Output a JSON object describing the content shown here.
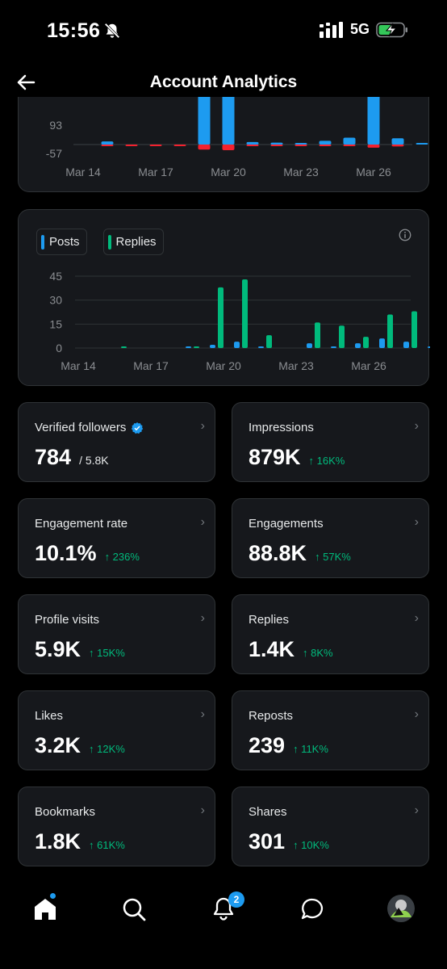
{
  "status": {
    "time": "15:56",
    "network": "5G"
  },
  "header": {
    "title": "Account Analytics"
  },
  "chart_data": [
    {
      "type": "bar",
      "categories": [
        "Mar 13",
        "Mar 14",
        "Mar 15",
        "Mar 16",
        "Mar 17",
        "Mar 18",
        "Mar 19",
        "Mar 20",
        "Mar 21",
        "Mar 22",
        "Mar 23",
        "Mar 24",
        "Mar 25",
        "Mar 26",
        "Mar 27"
      ],
      "x_tick_labels": [
        "Mar 14",
        "Mar 17",
        "Mar 20",
        "Mar 23",
        "Mar 26"
      ],
      "y_tick_labels": [
        "93",
        "-57"
      ],
      "series": [
        {
          "color": "#1d9bf0",
          "values": [
            0,
            25,
            0,
            0,
            0,
            600,
            600,
            20,
            15,
            10,
            30,
            55,
            600,
            50,
            10
          ]
        },
        {
          "color": "#f4212e",
          "values": [
            0,
            -3,
            -3,
            -3,
            -3,
            -40,
            -45,
            -5,
            -10,
            -8,
            -6,
            -3,
            -25,
            -15,
            0
          ]
        }
      ]
    },
    {
      "type": "bar",
      "categories": [
        "Mar 13",
        "Mar 14",
        "Mar 15",
        "Mar 16",
        "Mar 17",
        "Mar 18",
        "Mar 19",
        "Mar 20",
        "Mar 21",
        "Mar 22",
        "Mar 23",
        "Mar 24",
        "Mar 25",
        "Mar 26",
        "Mar 27"
      ],
      "x_tick_labels": [
        "Mar 14",
        "Mar 17",
        "Mar 20",
        "Mar 23",
        "Mar 26"
      ],
      "y_tick_labels": [
        "45",
        "30",
        "15",
        "0"
      ],
      "ylim": [
        0,
        45
      ],
      "legend": [
        "Posts",
        "Replies"
      ],
      "series": [
        {
          "name": "Posts",
          "color": "#1d9bf0",
          "values": [
            0,
            0,
            0,
            0,
            1,
            2,
            4,
            1,
            0,
            3,
            1,
            3,
            6,
            4,
            1
          ]
        },
        {
          "name": "Replies",
          "color": "#00ba7c",
          "values": [
            0,
            1,
            0,
            0,
            1,
            38,
            43,
            8,
            0,
            16,
            14,
            7,
            21,
            23,
            15
          ]
        }
      ]
    }
  ],
  "metrics": [
    {
      "label": "Verified followers",
      "value": "784",
      "sub": "/ 5.8K",
      "change": "",
      "verified": true
    },
    {
      "label": "Impressions",
      "value": "879K",
      "sub": "",
      "change": "↑ 16K%"
    },
    {
      "label": "Engagement rate",
      "value": "10.1%",
      "sub": "",
      "change": "↑ 236%"
    },
    {
      "label": "Engagements",
      "value": "88.8K",
      "sub": "",
      "change": "↑ 57K%"
    },
    {
      "label": "Profile visits",
      "value": "5.9K",
      "sub": "",
      "change": "↑ 15K%"
    },
    {
      "label": "Replies",
      "value": "1.4K",
      "sub": "",
      "change": "↑ 8K%"
    },
    {
      "label": "Likes",
      "value": "3.2K",
      "sub": "",
      "change": "↑ 12K%"
    },
    {
      "label": "Reposts",
      "value": "239",
      "sub": "",
      "change": "↑ 11K%"
    },
    {
      "label": "Bookmarks",
      "value": "1.8K",
      "sub": "",
      "change": "↑ 61K%"
    },
    {
      "label": "Shares",
      "value": "301",
      "sub": "",
      "change": "↑ 10K%"
    }
  ],
  "nav": {
    "notifications_badge": "2"
  },
  "icons": [
    "back-arrow-icon",
    "bell-slash-icon",
    "signal-icon",
    "battery-charging-icon",
    "info-icon",
    "verified-badge-icon",
    "chevron-right-icon",
    "home-icon",
    "search-icon",
    "bell-icon",
    "chat-bubble-icon",
    "avatar"
  ]
}
